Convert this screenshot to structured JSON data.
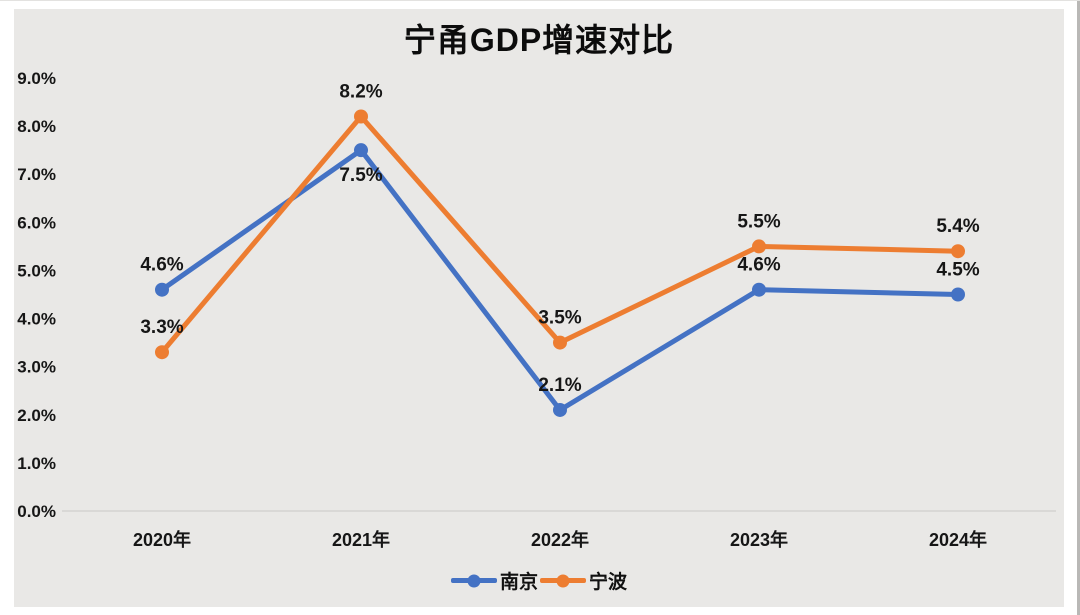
{
  "chart_data": {
    "type": "line",
    "title": "宁甬GDP增速对比",
    "categories": [
      "2020年",
      "2021年",
      "2022年",
      "2023年",
      "2024年"
    ],
    "series": [
      {
        "id": "nanjing",
        "name": "南京",
        "color": "#4472C4",
        "values": [
          4.6,
          7.5,
          2.1,
          4.6,
          4.5
        ],
        "labels": [
          "4.6%",
          "7.5%",
          "2.1%",
          "4.6%",
          "4.5%"
        ],
        "label_positions": [
          "above",
          "below",
          "above",
          "above",
          "above"
        ]
      },
      {
        "id": "ningbo",
        "name": "宁波",
        "color": "#ED7D31",
        "values": [
          3.3,
          8.2,
          3.5,
          5.5,
          5.4
        ],
        "labels": [
          "3.3%",
          "8.2%",
          "3.5%",
          "5.5%",
          "5.4%"
        ],
        "label_positions": [
          "above",
          "above",
          "above",
          "above",
          "above"
        ]
      }
    ],
    "y_axis": {
      "min": 0,
      "max": 9,
      "step": 1,
      "tick_labels": [
        "0.0%",
        "1.0%",
        "2.0%",
        "3.0%",
        "4.0%",
        "5.0%",
        "6.0%",
        "7.0%",
        "8.0%",
        "9.0%"
      ]
    },
    "ylim": [
      0,
      9
    ],
    "grid": false,
    "legend_position": "bottom",
    "axis_line_color": "#d9d8d6",
    "text_color": "#161616"
  }
}
